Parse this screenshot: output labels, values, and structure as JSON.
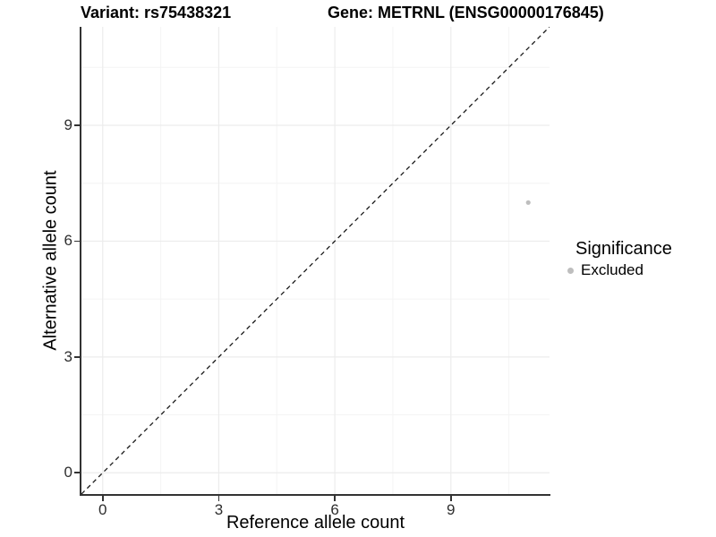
{
  "chart_data": {
    "type": "scatter",
    "title_left": "Variant: rs75438321",
    "title_right": "Gene: METRNL (ENSG00000176845)",
    "xlabel": "Reference allele count",
    "ylabel": "Alternative allele count",
    "xlim": [
      -0.55,
      11.55
    ],
    "ylim": [
      -0.55,
      11.55
    ],
    "x_ticks": [
      0,
      3,
      6,
      9
    ],
    "y_ticks": [
      0,
      3,
      6,
      9
    ],
    "x_minor_ticks": [
      1.5,
      4.5,
      7.5,
      10.5
    ],
    "y_minor_ticks": [
      1.5,
      4.5,
      7.5,
      10.5
    ],
    "grid": "major and minor gridlines, light gray on white panel",
    "reference_line": {
      "equation": "y = x",
      "style": "dashed",
      "color": "#1a1a1a"
    },
    "points": [
      {
        "x": 11,
        "y": 7,
        "significance": "Excluded",
        "color": "#bebebe"
      }
    ],
    "legend": {
      "title": "Significance",
      "position": "right",
      "items": [
        {
          "label": "Excluded",
          "marker": "circle",
          "color": "#bebebe"
        }
      ]
    },
    "colors": {
      "axis_line": "#333333",
      "tick_label": "#2e2e2e",
      "grid_major": "#ececec",
      "grid_minor": "#f4f4f4",
      "reference_line": "#1a1a1a",
      "point": "#bebebe",
      "background": "#ffffff"
    }
  }
}
